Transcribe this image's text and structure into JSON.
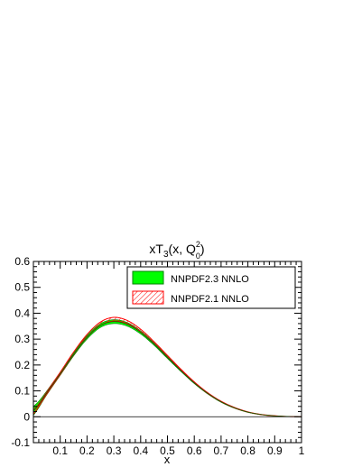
{
  "chart_data": {
    "type": "area",
    "title": "xT3(x, Q0^2)",
    "title_parts": {
      "base": "xT",
      "sub3": "3",
      "args": "(x, Q",
      "sup2": "2",
      "sub0": "0",
      "close": ")"
    },
    "xlabel": "x",
    "ylabel": "",
    "xlim": [
      0.0,
      1.0
    ],
    "ylim": [
      -0.1,
      0.6
    ],
    "x_ticks": [
      0.1,
      0.2,
      0.3,
      0.4,
      0.5,
      0.6,
      0.7,
      0.8,
      0.9,
      1
    ],
    "x_tick_labels": [
      "0.1",
      "0.2",
      "0.3",
      "0.4",
      "0.5",
      "0.6",
      "0.7",
      "0.8",
      "0.9",
      "1"
    ],
    "y_ticks": [
      -0.1,
      0,
      0.1,
      0.2,
      0.3,
      0.4,
      0.5,
      0.6
    ],
    "y_tick_labels": [
      "-0.1",
      "0",
      "0.1",
      "0.2",
      "0.3",
      "0.4",
      "0.5",
      "0.6"
    ],
    "grid": false,
    "legend_position": "top-right",
    "series": [
      {
        "name": "NNPDF2.3 NNLO",
        "style": "solid-fill",
        "color": "#00ff00",
        "edge_color": "#008000",
        "x": [
          0.0,
          0.02,
          0.05,
          0.1,
          0.15,
          0.2,
          0.25,
          0.3,
          0.35,
          0.4,
          0.45,
          0.5,
          0.55,
          0.6,
          0.65,
          0.7,
          0.75,
          0.8,
          0.85,
          0.9,
          0.95,
          1.0
        ],
        "lower": [
          0.005,
          0.035,
          0.085,
          0.16,
          0.235,
          0.3,
          0.345,
          0.36,
          0.35,
          0.32,
          0.276,
          0.225,
          0.175,
          0.128,
          0.088,
          0.056,
          0.033,
          0.017,
          0.008,
          0.003,
          0.001,
          0.0
        ],
        "upper": [
          0.04,
          0.06,
          0.1,
          0.172,
          0.247,
          0.314,
          0.36,
          0.375,
          0.364,
          0.332,
          0.286,
          0.234,
          0.182,
          0.134,
          0.093,
          0.06,
          0.036,
          0.019,
          0.009,
          0.004,
          0.001,
          0.0
        ]
      },
      {
        "name": "NNPDF2.1 NNLO",
        "style": "hatched",
        "color": "#ff0000",
        "edge_color": "#ff0000",
        "x": [
          0.0,
          0.02,
          0.05,
          0.1,
          0.15,
          0.2,
          0.25,
          0.3,
          0.35,
          0.4,
          0.45,
          0.5,
          0.55,
          0.6,
          0.65,
          0.7,
          0.75,
          0.8,
          0.85,
          0.9,
          0.95,
          1.0
        ],
        "lower": [
          0.01,
          0.04,
          0.088,
          0.163,
          0.24,
          0.307,
          0.353,
          0.37,
          0.36,
          0.328,
          0.282,
          0.23,
          0.179,
          0.131,
          0.09,
          0.058,
          0.034,
          0.018,
          0.008,
          0.003,
          0.001,
          0.0
        ],
        "upper": [
          0.025,
          0.05,
          0.096,
          0.172,
          0.25,
          0.318,
          0.366,
          0.384,
          0.372,
          0.338,
          0.29,
          0.237,
          0.184,
          0.135,
          0.093,
          0.06,
          0.036,
          0.019,
          0.009,
          0.004,
          0.001,
          0.0
        ]
      }
    ]
  }
}
